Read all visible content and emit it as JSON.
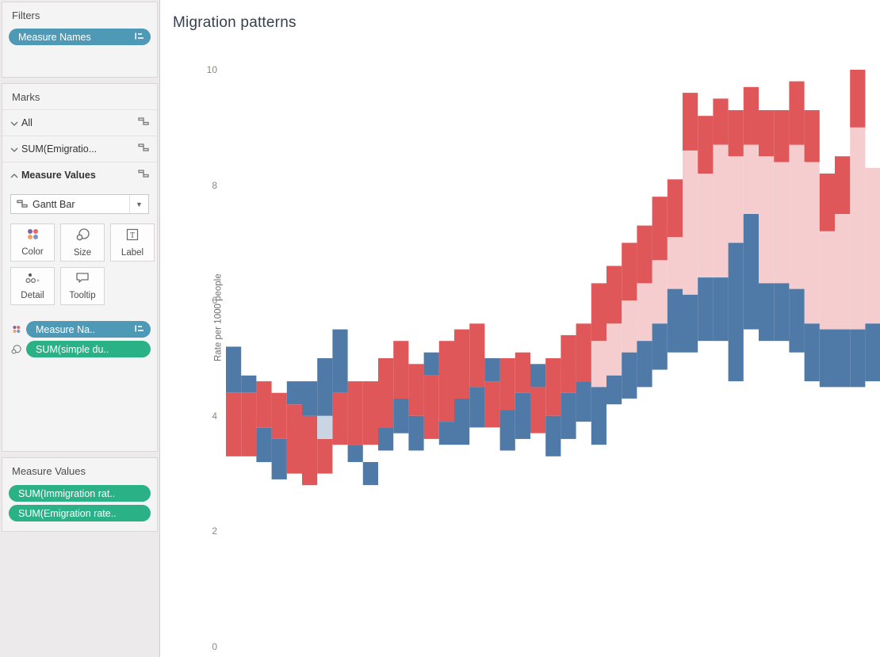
{
  "filters_panel": {
    "title": "Filters",
    "pill": {
      "label": "Measure Names",
      "color": "#4e9ab6",
      "icon": "sort-icon"
    }
  },
  "marks_panel": {
    "title": "Marks",
    "layers": [
      {
        "label": "All",
        "state": "collapsed"
      },
      {
        "label": "SUM(Emigratio...",
        "state": "collapsed"
      },
      {
        "label": "Measure Values",
        "state": "expanded"
      }
    ],
    "mark_type": {
      "label": "Gantt Bar"
    },
    "buttons": {
      "color": "Color",
      "size": "Size",
      "label": "Label",
      "detail": "Detail",
      "tooltip": "Tooltip"
    },
    "encodings": [
      {
        "channel": "color",
        "label": "Measure Na..",
        "color": "#4e9ab6",
        "icon": "sort-icon"
      },
      {
        "channel": "size",
        "label": "SUM(simple du..",
        "color": "#2ab185"
      }
    ]
  },
  "measure_values_panel": {
    "title": "Measure Values",
    "pills": [
      {
        "label": "SUM(Immigration rat..",
        "color": "#2ab185"
      },
      {
        "label": "SUM(Emigration rate..",
        "color": "#2ab185"
      }
    ]
  },
  "colors": {
    "pill_teal": "#4e9ab6",
    "pill_green": "#2ab185",
    "color_icon_dots": [
      "#7b66a5",
      "#e56a6d",
      "#f2a25c",
      "#7b93c5"
    ]
  },
  "chart_data": {
    "type": "bar",
    "subtype": "gantt",
    "title": "Migration patterns",
    "ylabel": "Rate per 1000 people",
    "ylim": [
      0,
      10
    ],
    "yticks": [
      0,
      2,
      4,
      6,
      8,
      10
    ],
    "x_axis_note": "x tick labels not visible (cropped at bottom)",
    "legend": "none",
    "series_colors": {
      "red": "#e05759",
      "blue": "#4f7aa7",
      "pink": "#f5cdce",
      "gray": "#c9d5e3"
    },
    "bars": [
      {
        "red": [
          3.3,
          4.4
        ],
        "blue": [
          4.4,
          5.2
        ],
        "pink": null,
        "gray": null
      },
      {
        "red": [
          3.3,
          4.4
        ],
        "blue": [
          4.4,
          4.7
        ],
        "pink": null,
        "gray": null
      },
      {
        "red": [
          3.8,
          4.6
        ],
        "blue": [
          3.2,
          3.8
        ],
        "pink": null,
        "gray": null
      },
      {
        "red": [
          3.6,
          4.4
        ],
        "blue": [
          2.9,
          3.6
        ],
        "pink": null,
        "gray": null
      },
      {
        "red": [
          3.0,
          4.2
        ],
        "blue": [
          4.2,
          4.6
        ],
        "pink": null,
        "gray": null
      },
      {
        "red": [
          2.8,
          4.0
        ],
        "blue": [
          4.0,
          4.6
        ],
        "pink": null,
        "gray": null
      },
      {
        "red": [
          3.0,
          3.6
        ],
        "blue": [
          4.0,
          5.0
        ],
        "pink": null,
        "gray": [
          3.6,
          4.0
        ]
      },
      {
        "red": [
          3.5,
          4.4
        ],
        "blue": [
          4.4,
          5.5
        ],
        "pink": null,
        "gray": null
      },
      {
        "red": [
          3.5,
          4.6
        ],
        "blue": [
          3.2,
          3.5
        ],
        "pink": null,
        "gray": null
      },
      {
        "red": [
          3.5,
          4.6
        ],
        "blue": [
          2.8,
          3.2
        ],
        "pink": null,
        "gray": null
      },
      {
        "red": [
          3.8,
          5.0
        ],
        "blue": [
          3.4,
          3.8
        ],
        "pink": null,
        "gray": null
      },
      {
        "red": [
          4.3,
          5.3
        ],
        "blue": [
          3.7,
          4.3
        ],
        "pink": [
          3.98,
          4.06
        ],
        "gray": null
      },
      {
        "red": [
          4.0,
          4.9
        ],
        "blue": [
          3.4,
          4.0
        ],
        "pink": null,
        "gray": null
      },
      {
        "red": [
          3.6,
          4.7
        ],
        "blue": [
          4.7,
          5.1
        ],
        "pink": null,
        "gray": null
      },
      {
        "red": [
          3.9,
          5.3
        ],
        "blue": [
          3.5,
          3.9
        ],
        "pink": null,
        "gray": null
      },
      {
        "red": [
          4.3,
          5.5
        ],
        "blue": [
          3.5,
          4.3
        ],
        "pink": null,
        "gray": null
      },
      {
        "red": [
          4.5,
          5.6
        ],
        "blue": [
          3.8,
          4.5
        ],
        "pink": null,
        "gray": null
      },
      {
        "red": [
          3.8,
          4.6
        ],
        "blue": [
          4.6,
          5.0
        ],
        "pink": null,
        "gray": null
      },
      {
        "red": [
          4.1,
          5.0
        ],
        "blue": [
          3.4,
          4.1
        ],
        "pink": null,
        "gray": null
      },
      {
        "red": [
          4.4,
          5.1
        ],
        "blue": [
          3.6,
          4.4
        ],
        "pink": null,
        "gray": null
      },
      {
        "red": [
          3.7,
          4.5
        ],
        "blue": [
          4.5,
          4.9
        ],
        "pink": null,
        "gray": null
      },
      {
        "red": [
          4.0,
          5.0
        ],
        "blue": [
          3.3,
          4.0
        ],
        "pink": null,
        "gray": null
      },
      {
        "red": [
          4.4,
          5.4
        ],
        "blue": [
          3.6,
          4.4
        ],
        "pink": null,
        "gray": null
      },
      {
        "red": [
          4.6,
          5.6
        ],
        "blue": [
          3.9,
          4.6
        ],
        "pink": null,
        "gray": null
      },
      {
        "red": [
          5.3,
          6.3
        ],
        "blue": [
          3.5,
          4.5
        ],
        "pink": [
          4.5,
          5.3
        ],
        "gray": null
      },
      {
        "red": [
          5.6,
          6.6
        ],
        "blue": [
          4.2,
          4.7
        ],
        "pink": [
          4.7,
          5.6
        ],
        "gray": null
      },
      {
        "red": [
          6.0,
          7.0
        ],
        "blue": [
          4.3,
          5.1
        ],
        "pink": [
          5.1,
          6.0
        ],
        "gray": null
      },
      {
        "red": [
          6.3,
          7.3
        ],
        "blue": [
          4.5,
          5.3
        ],
        "pink": [
          5.3,
          6.3
        ],
        "gray": null
      },
      {
        "red": [
          6.7,
          7.8
        ],
        "blue": [
          4.8,
          5.6
        ],
        "pink": [
          5.6,
          6.7
        ],
        "gray": null
      },
      {
        "red": [
          7.1,
          8.1
        ],
        "blue": [
          5.1,
          6.2
        ],
        "pink": [
          6.2,
          7.1
        ],
        "gray": null
      },
      {
        "red": [
          8.6,
          9.6
        ],
        "blue": [
          5.1,
          6.1
        ],
        "pink": [
          6.1,
          8.6
        ],
        "gray": null
      },
      {
        "red": [
          8.2,
          9.2
        ],
        "blue": [
          5.3,
          6.4
        ],
        "pink": [
          6.4,
          8.2
        ],
        "gray": null
      },
      {
        "red": [
          8.7,
          9.5
        ],
        "blue": [
          5.3,
          6.4
        ],
        "pink": [
          6.4,
          8.7
        ],
        "gray": null
      },
      {
        "red": [
          8.5,
          9.3
        ],
        "blue": [
          4.6,
          7.0
        ],
        "pink": [
          7.0,
          8.5
        ],
        "gray": null
      },
      {
        "red": [
          8.7,
          9.7
        ],
        "blue": [
          5.5,
          7.5
        ],
        "pink": [
          6.0,
          8.7
        ],
        "gray": null
      },
      {
        "red": [
          8.5,
          9.3
        ],
        "blue": [
          5.3,
          6.3
        ],
        "pink": [
          6.3,
          8.5
        ],
        "gray": null
      },
      {
        "red": [
          8.4,
          9.3
        ],
        "blue": [
          5.3,
          6.3
        ],
        "pink": [
          6.3,
          8.4
        ],
        "gray": null
      },
      {
        "red": [
          8.7,
          9.8
        ],
        "blue": [
          5.1,
          6.2
        ],
        "pink": [
          6.2,
          8.7
        ],
        "gray": null
      },
      {
        "red": [
          8.4,
          9.3
        ],
        "blue": [
          4.6,
          5.6
        ],
        "pink": [
          5.6,
          8.4
        ],
        "gray": null
      },
      {
        "red": [
          7.2,
          8.2
        ],
        "blue": [
          4.5,
          5.5
        ],
        "pink": [
          5.5,
          7.2
        ],
        "gray": null
      },
      {
        "red": [
          7.5,
          8.5
        ],
        "blue": [
          4.5,
          5.5
        ],
        "pink": [
          5.5,
          7.5
        ],
        "gray": null
      },
      {
        "red": [
          9.0,
          10.0
        ],
        "blue": [
          4.5,
          5.5
        ],
        "pink": [
          5.5,
          9.0
        ],
        "gray": null
      },
      {
        "red": null,
        "blue": [
          4.6,
          5.6
        ],
        "pink": [
          5.6,
          8.3
        ],
        "gray": null
      }
    ]
  }
}
